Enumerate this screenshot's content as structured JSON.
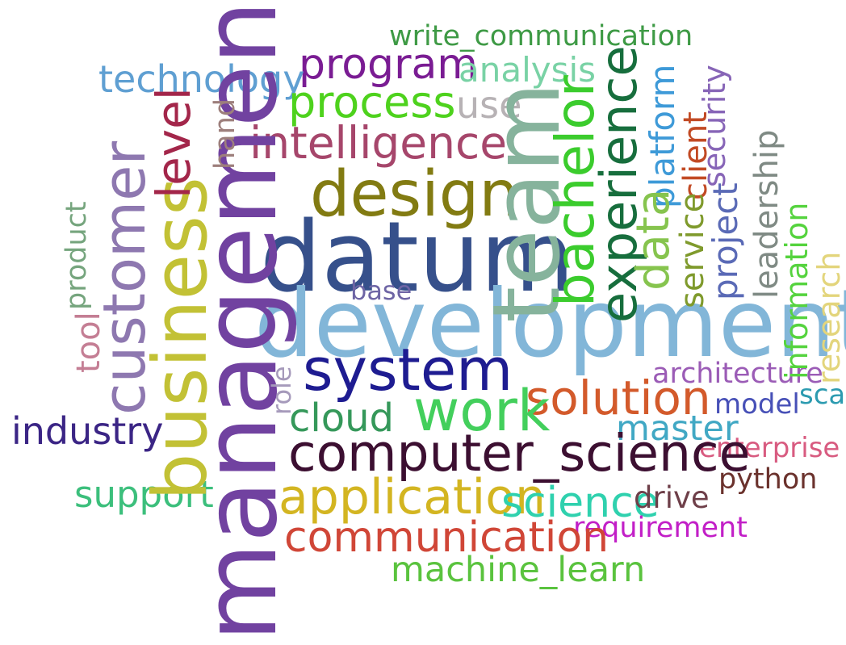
{
  "words": {
    "write_communication": {
      "text": "write_communication",
      "color": "#3e9a45"
    },
    "program": {
      "text": "program",
      "color": "#7a1c93"
    },
    "analysis": {
      "text": "analysis",
      "color": "#79d2a5"
    },
    "technology": {
      "text": "technology",
      "color": "#5f9fd2"
    },
    "process": {
      "text": "process",
      "color": "#4ed21d"
    },
    "use": {
      "text": "use",
      "color": "#b7b2b5"
    },
    "intelligence": {
      "text": "intelligence",
      "color": "#a6466b"
    },
    "design": {
      "text": "design",
      "color": "#827b12"
    },
    "datum": {
      "text": "datum",
      "color": "#36508b"
    },
    "development": {
      "text": "development",
      "color": "#82b6d8"
    },
    "system": {
      "text": "system",
      "color": "#1e1c91"
    },
    "base": {
      "text": "base",
      "color": "#6e65a5"
    },
    "solution": {
      "text": "solution",
      "color": "#d35a2b"
    },
    "architecture": {
      "text": "architecture",
      "color": "#9b5cb6"
    },
    "model": {
      "text": "model",
      "color": "#4750b7"
    },
    "scal": {
      "text": "scal",
      "color": "#2c9bb0"
    },
    "work": {
      "text": "work",
      "color": "#43cf5c"
    },
    "cloud": {
      "text": "cloud",
      "color": "#35985a"
    },
    "master": {
      "text": "master",
      "color": "#41a8c4"
    },
    "enterprise": {
      "text": "enterprise",
      "color": "#d85b80"
    },
    "industry": {
      "text": "industry",
      "color": "#3b2585"
    },
    "computer_science": {
      "text": "computer_science",
      "color": "#3c0f31"
    },
    "python": {
      "text": "python",
      "color": "#6b322d"
    },
    "support": {
      "text": "support",
      "color": "#3cbf7c"
    },
    "application": {
      "text": "application",
      "color": "#d3b521"
    },
    "science": {
      "text": "science",
      "color": "#2fd1ae"
    },
    "drive": {
      "text": "drive",
      "color": "#6e3f49"
    },
    "requirement": {
      "text": "requirement",
      "color": "#c21fc7"
    },
    "communication": {
      "text": "communication",
      "color": "#d04637"
    },
    "machine_learn": {
      "text": "machine_learn",
      "color": "#5ac33e"
    },
    "management": {
      "text": "management",
      "color": "#7142a0"
    },
    "business": {
      "text": "business",
      "color": "#c2c135"
    },
    "customer": {
      "text": "customer",
      "color": "#8e78b0"
    },
    "level": {
      "text": "level",
      "color": "#a3264a"
    },
    "hand": {
      "text": "hand",
      "color": "#9d7f7c"
    },
    "product": {
      "text": "product",
      "color": "#76a57e"
    },
    "tool": {
      "text": "tool",
      "color": "#c47e94"
    },
    "role": {
      "text": "role",
      "color": "#a69abb"
    },
    "team": {
      "text": "team",
      "color": "#86b39c"
    },
    "bachelor": {
      "text": "bachelor",
      "color": "#3bcc2d"
    },
    "experience": {
      "text": "experience",
      "color": "#176e3d"
    },
    "platform": {
      "text": "platform",
      "color": "#3e9ad8"
    },
    "data": {
      "text": "data",
      "color": "#86c44e"
    },
    "client": {
      "text": "client",
      "color": "#c24a24"
    },
    "security": {
      "text": "security",
      "color": "#8765b7"
    },
    "service": {
      "text": "service",
      "color": "#7f9a2c"
    },
    "project": {
      "text": "project",
      "color": "#5a6ab6"
    },
    "leadership": {
      "text": "leadership",
      "color": "#7f8a84"
    },
    "information": {
      "text": "information",
      "color": "#55d33e"
    },
    "research": {
      "text": "research",
      "color": "#e3d57c"
    }
  }
}
